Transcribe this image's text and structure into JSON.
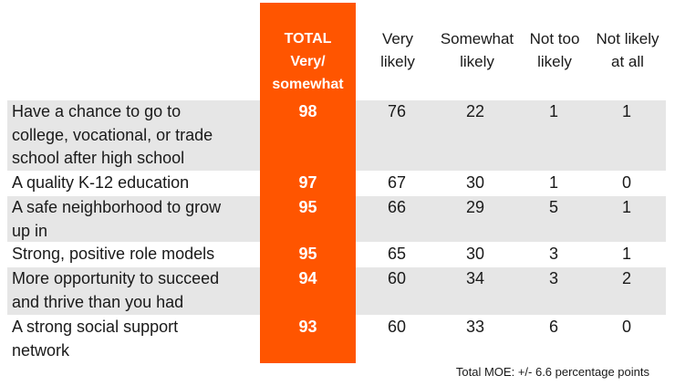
{
  "headers": {
    "total_lines": [
      "TOTAL",
      "Very/",
      "somewhat"
    ],
    "very_likely_lines": [
      "Very",
      "likely"
    ],
    "somewhat_likely_lines": [
      "Somewhat",
      "likely"
    ],
    "not_too_likely_lines": [
      "Not too",
      "likely"
    ],
    "not_likely_lines": [
      "Not likely",
      "at all"
    ]
  },
  "rows": [
    {
      "label_lines": [
        "Have a chance to go to",
        "college, vocational, or trade",
        "school after high school"
      ],
      "total": "98",
      "very": "76",
      "somewhat": "22",
      "not_too": "1",
      "not_at_all": "1"
    },
    {
      "label_lines": [
        "A quality K-12 education"
      ],
      "total": "97",
      "very": "67",
      "somewhat": "30",
      "not_too": "1",
      "not_at_all": "0"
    },
    {
      "label_lines": [
        "A safe neighborhood to grow",
        "up in"
      ],
      "total": "95",
      "very": "66",
      "somewhat": "29",
      "not_too": "5",
      "not_at_all": "1"
    },
    {
      "label_lines": [
        "Strong, positive role models"
      ],
      "total": "95",
      "very": "65",
      "somewhat": "30",
      "not_too": "3",
      "not_at_all": "1"
    },
    {
      "label_lines": [
        "More opportunity to succeed",
        "and thrive than you had"
      ],
      "total": "94",
      "very": "60",
      "somewhat": "34",
      "not_too": "3",
      "not_at_all": "2"
    },
    {
      "label_lines": [
        "A strong social support",
        "network"
      ],
      "total": "93",
      "very": "60",
      "somewhat": "33",
      "not_too": "6",
      "not_at_all": "0"
    }
  ],
  "footer": "Total MOE: +/- 6.6 percentage points",
  "colors": {
    "accent": "#ff5500",
    "row_shade": "#e6e6e6"
  }
}
